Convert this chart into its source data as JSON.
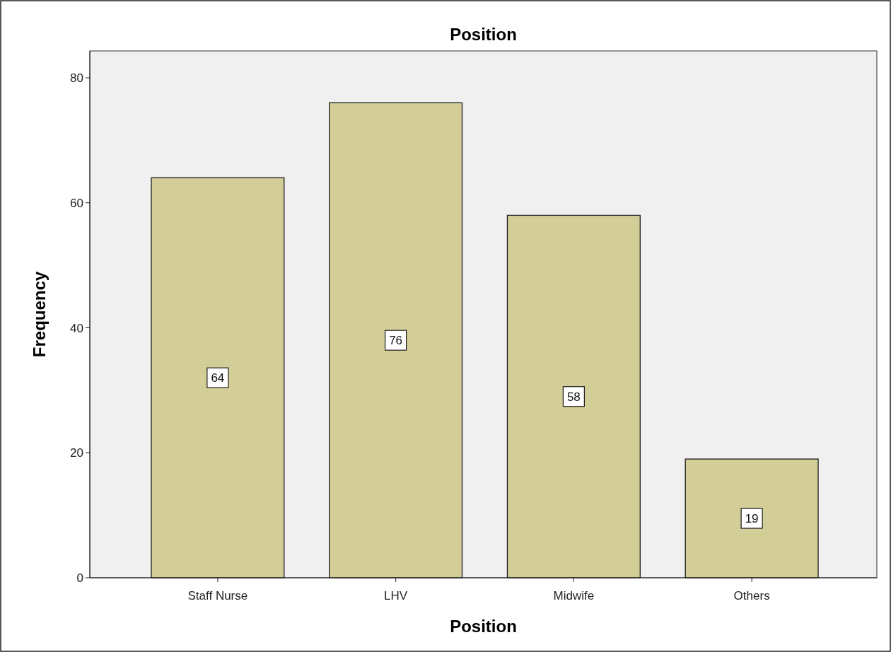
{
  "chart_data": {
    "type": "bar",
    "title": "Position",
    "xlabel": "Position",
    "ylabel": "Frequency",
    "categories": [
      "Staff Nurse",
      "LHV",
      "Midwife",
      "Others"
    ],
    "values": [
      64,
      76,
      58,
      19
    ],
    "color": "#d3ce97",
    "ylim": [
      0,
      84.3
    ],
    "yticks": [
      0,
      20,
      40,
      60,
      80
    ],
    "grid": false,
    "data_labels": true
  }
}
